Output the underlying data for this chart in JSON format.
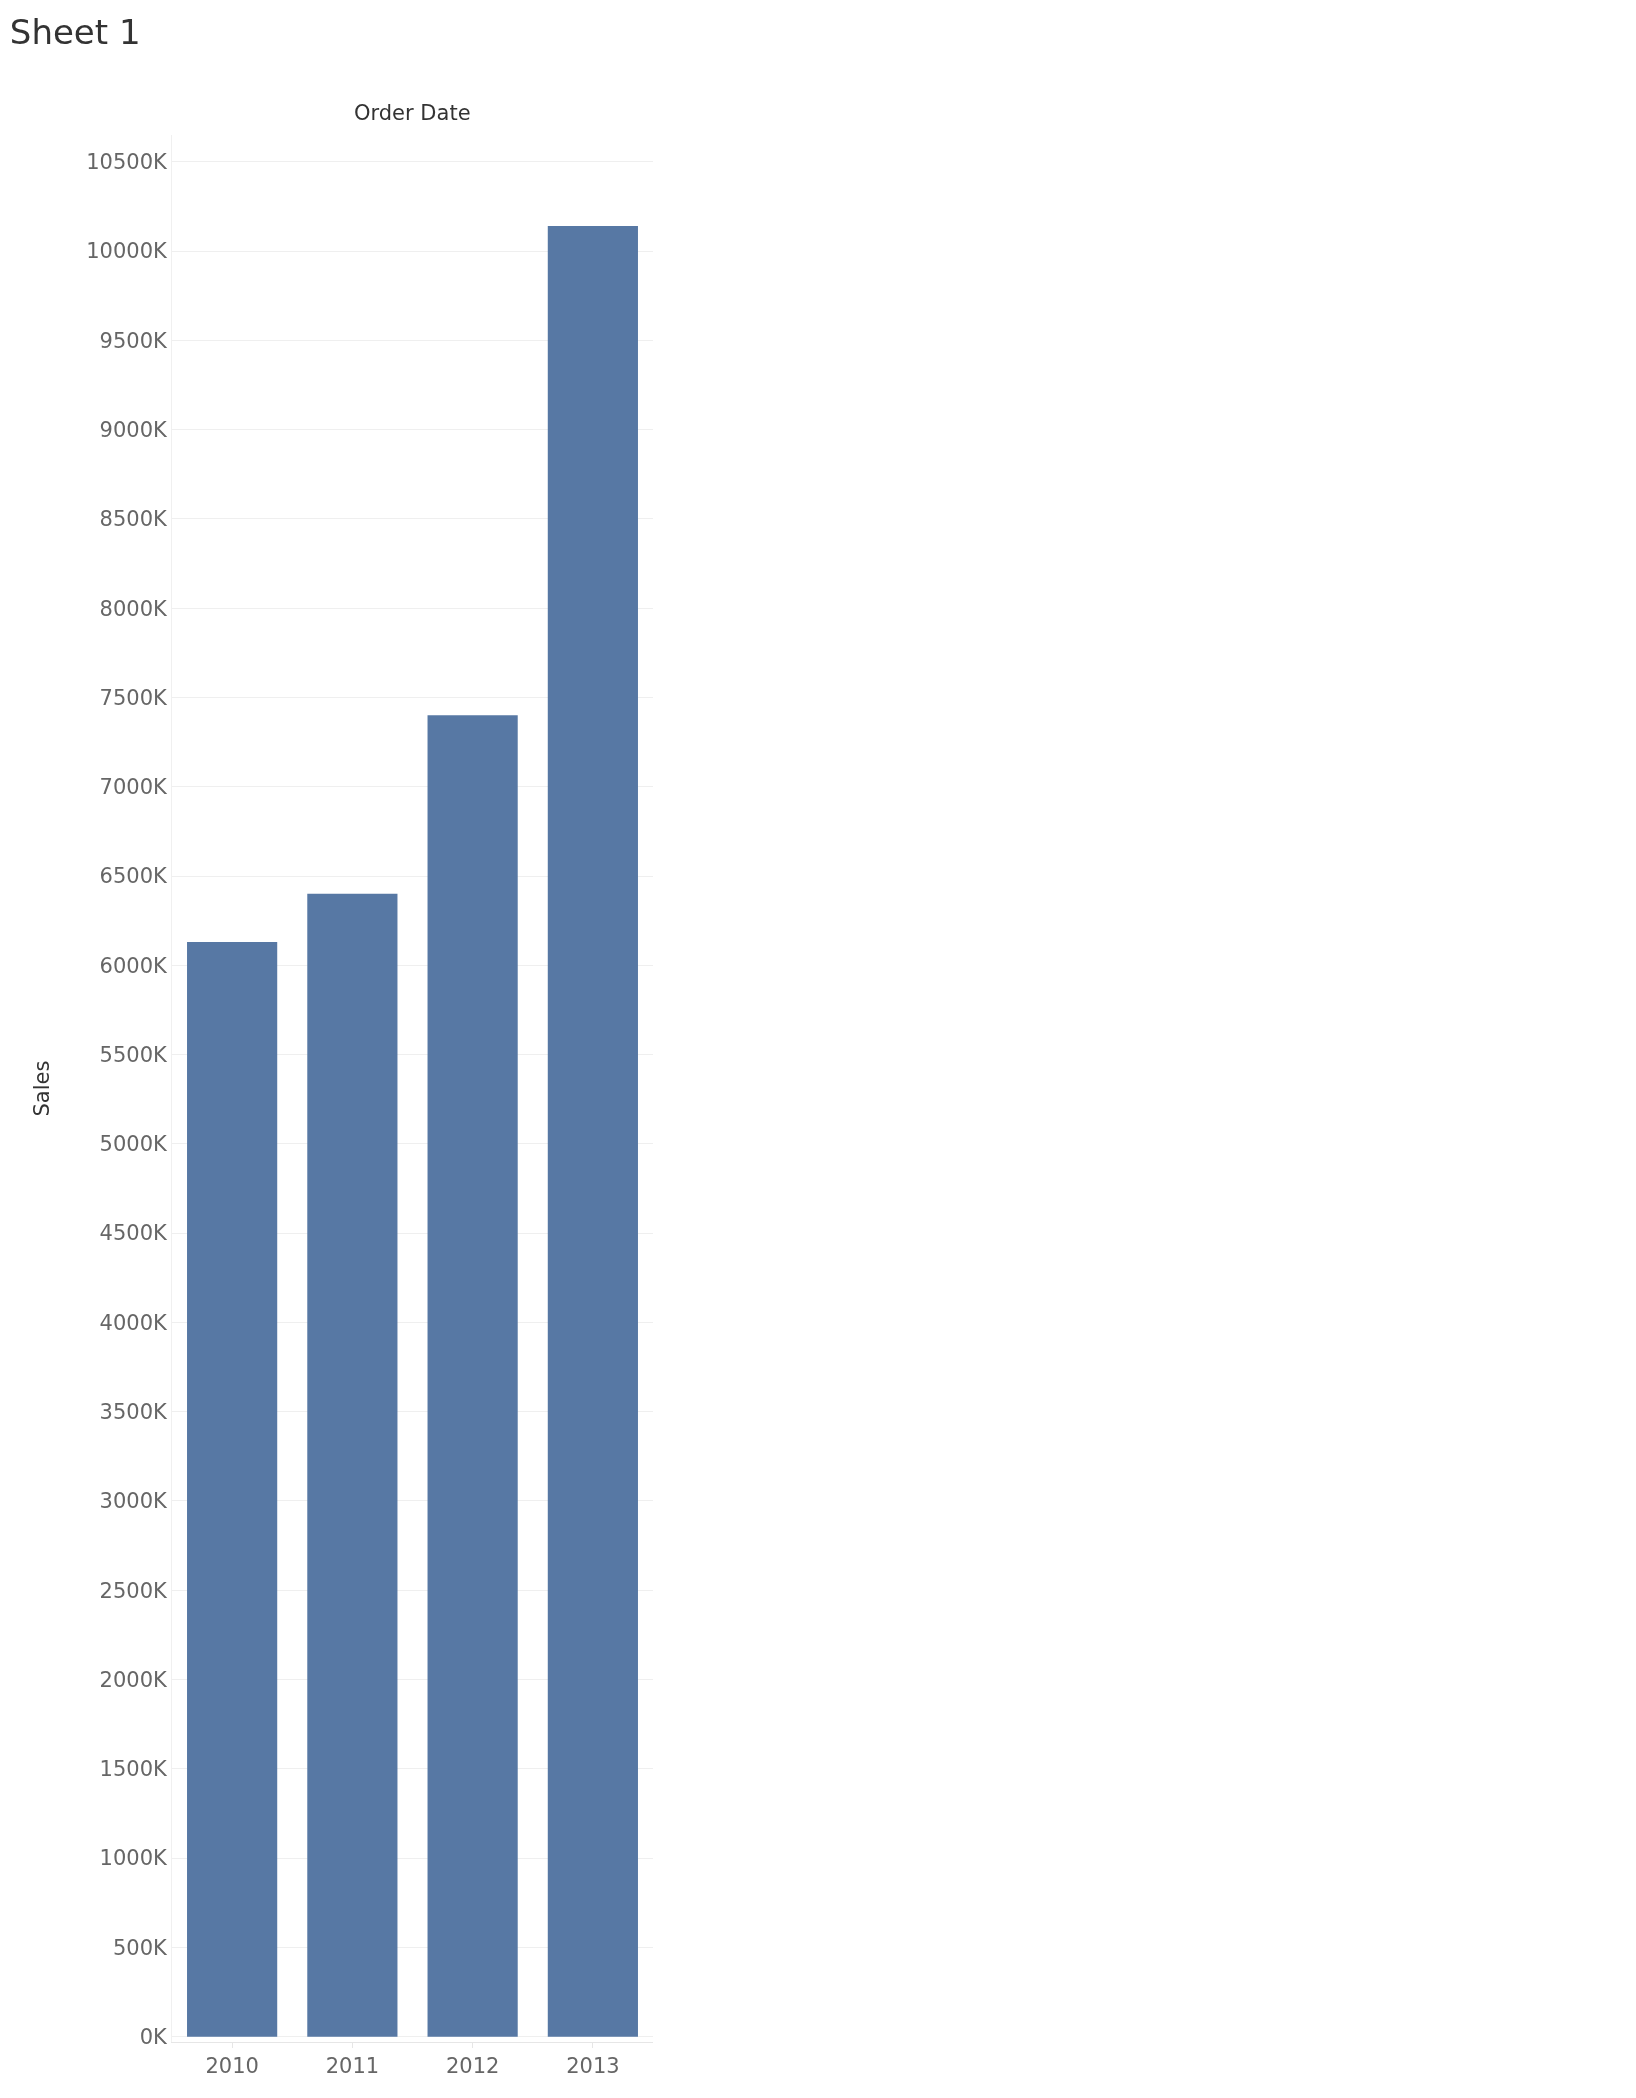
{
  "chart_data": {
    "type": "bar",
    "title": "Sheet 1",
    "xlabel": "Order Date",
    "ylabel": "Sales",
    "categories": [
      "2010",
      "2011",
      "2012",
      "2013"
    ],
    "values": [
      6130000,
      6400000,
      7400000,
      10140000
    ],
    "color": "#5778a4",
    "ylim": [
      -30000,
      10650000
    ],
    "yticks": [
      {
        "value": 0,
        "label": "0K"
      },
      {
        "value": 500000,
        "label": "500K"
      },
      {
        "value": 1000000,
        "label": "1000K"
      },
      {
        "value": 1500000,
        "label": "1500K"
      },
      {
        "value": 2000000,
        "label": "2000K"
      },
      {
        "value": 2500000,
        "label": "2500K"
      },
      {
        "value": 3000000,
        "label": "3000K"
      },
      {
        "value": 3500000,
        "label": "3500K"
      },
      {
        "value": 4000000,
        "label": "4000K"
      },
      {
        "value": 4500000,
        "label": "4500K"
      },
      {
        "value": 5000000,
        "label": "5000K"
      },
      {
        "value": 5500000,
        "label": "5500K"
      },
      {
        "value": 6000000,
        "label": "6000K"
      },
      {
        "value": 6500000,
        "label": "6500K"
      },
      {
        "value": 7000000,
        "label": "7000K"
      },
      {
        "value": 7500000,
        "label": "7500K"
      },
      {
        "value": 8000000,
        "label": "8000K"
      },
      {
        "value": 8500000,
        "label": "8500K"
      },
      {
        "value": 9000000,
        "label": "9000K"
      },
      {
        "value": 9500000,
        "label": "9500K"
      },
      {
        "value": 10000000,
        "label": "10000K"
      },
      {
        "value": 10500000,
        "label": "10500K"
      }
    ],
    "grid": "y"
  }
}
